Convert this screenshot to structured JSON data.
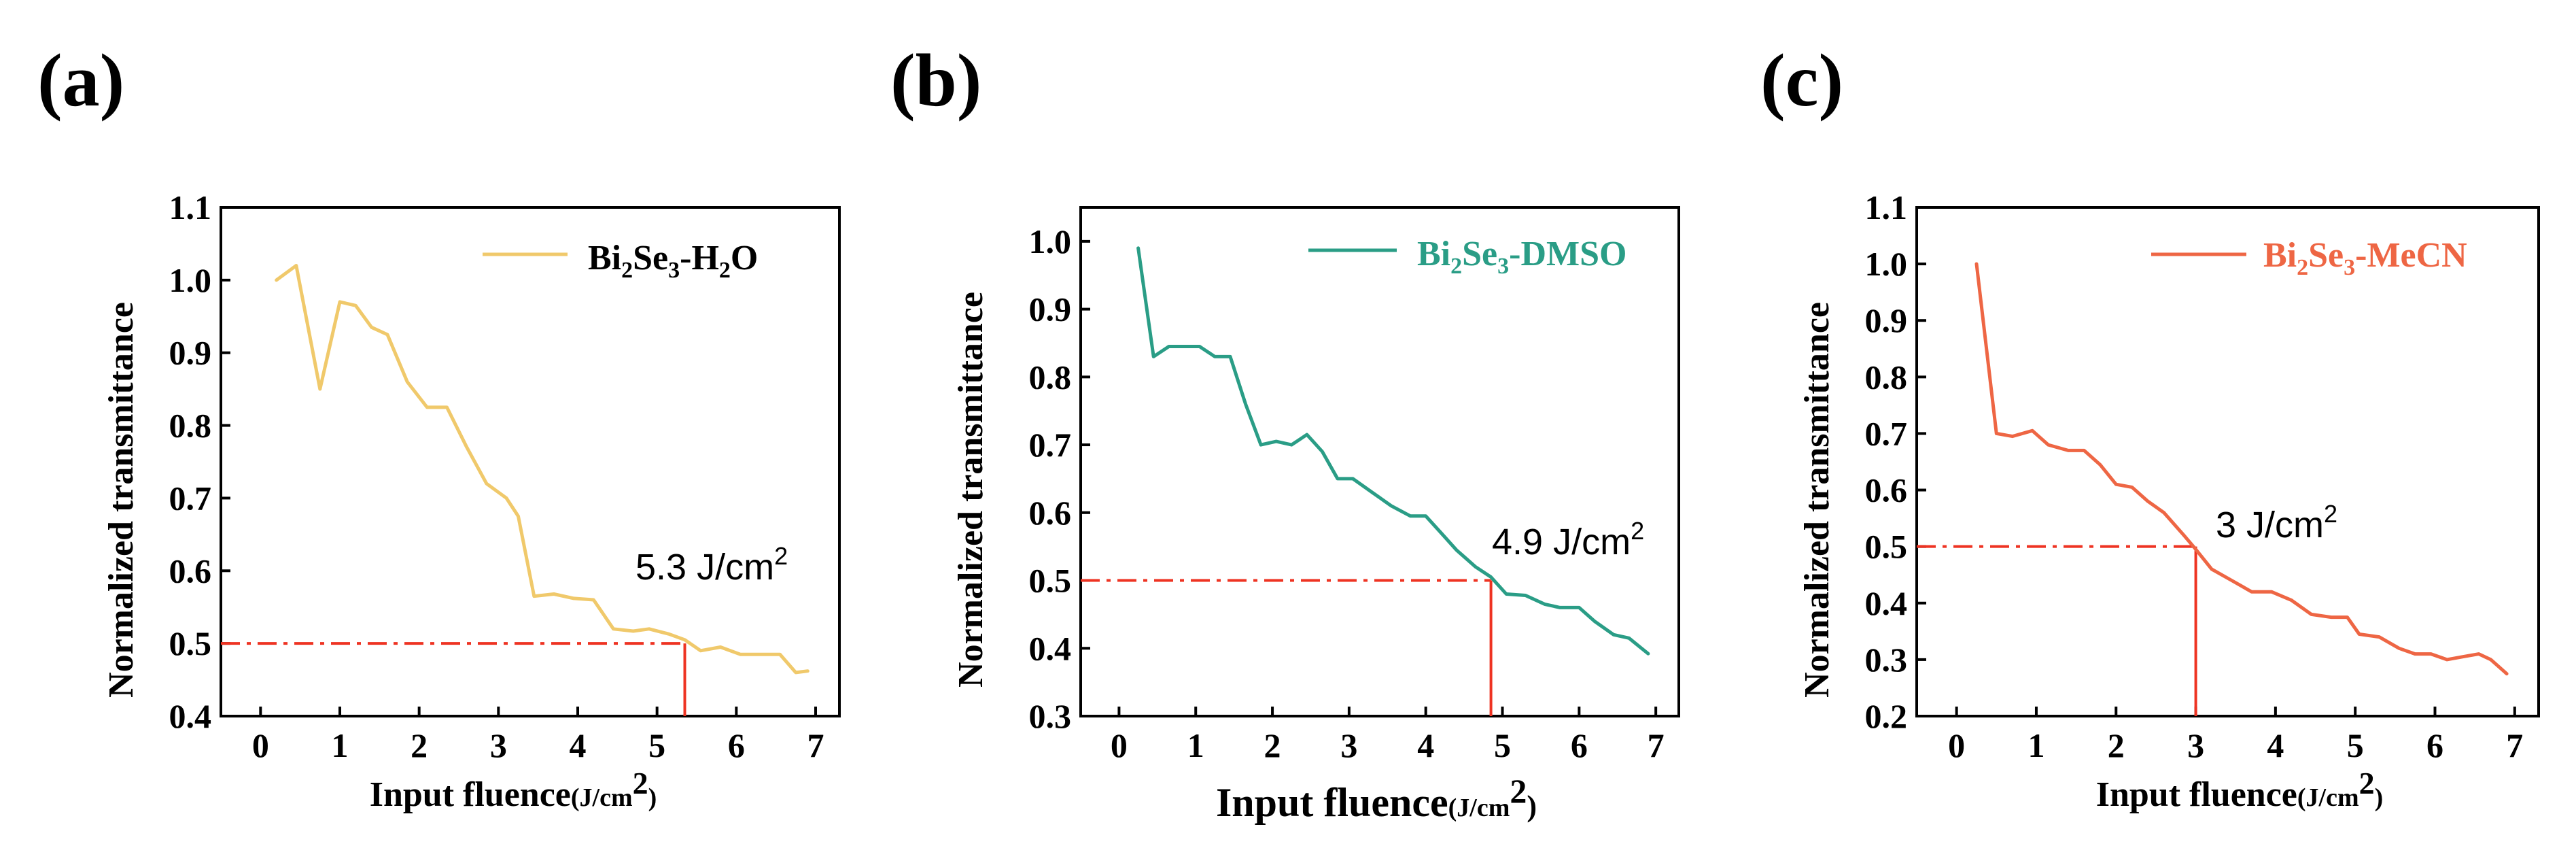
{
  "chart_data": [
    {
      "panel_label": "(a)",
      "type": "line",
      "xlabel": "Input fluence(J/cm2)",
      "ylabel": "Normalized transmittance",
      "xlim": [
        -0.5,
        7.3
      ],
      "ylim": [
        0.4,
        1.1
      ],
      "x_ticks": [
        "0",
        "1",
        "2",
        "3",
        "4",
        "5",
        "6",
        "7"
      ],
      "y_ticks": [
        "0.4",
        "0.5",
        "0.6",
        "0.7",
        "0.8",
        "0.9",
        "1.0",
        "1.1"
      ],
      "legend": {
        "base": "Bi",
        "s1": "2",
        "mid": "Se",
        "s2": "3",
        "suffix": "-H",
        "s3": "2",
        "end": "O"
      },
      "legend_position": "top-right",
      "color": "#f0c96b",
      "ref_color": "#ee3322",
      "series": [
        {
          "name": "Bi2Se3-H2O",
          "x": [
            0.2,
            0.45,
            0.75,
            1.0,
            1.2,
            1.4,
            1.6,
            1.85,
            2.1,
            2.35,
            2.6,
            2.85,
            3.1,
            3.25,
            3.45,
            3.7,
            3.95,
            4.2,
            4.45,
            4.7,
            4.9,
            5.15,
            5.35,
            5.55,
            5.8,
            6.05,
            6.3,
            6.55,
            6.75,
            6.9
          ],
          "y": [
            1.0,
            1.02,
            0.85,
            0.97,
            0.965,
            0.935,
            0.925,
            0.86,
            0.825,
            0.825,
            0.77,
            0.72,
            0.7,
            0.675,
            0.565,
            0.568,
            0.562,
            0.56,
            0.52,
            0.517,
            0.52,
            0.513,
            0.505,
            0.49,
            0.495,
            0.485,
            0.485,
            0.485,
            0.46,
            0.462
          ]
        }
      ],
      "threshold": {
        "x": 5.35,
        "y": 0.5,
        "label": "5.3 J/cm",
        "label_sup": "2"
      }
    },
    {
      "panel_label": "(b)",
      "type": "line",
      "xlabel": "Input fluence(J/cm2)",
      "ylabel": "Normalized transmittance",
      "xlim": [
        -0.5,
        7.3
      ],
      "ylim": [
        0.3,
        1.05
      ],
      "x_ticks": [
        "0",
        "1",
        "2",
        "3",
        "4",
        "5",
        "6",
        "7"
      ],
      "y_ticks": [
        "0.3",
        "0.4",
        "0.5",
        "0.6",
        "0.7",
        "0.8",
        "0.9",
        "1.0"
      ],
      "legend": {
        "base": "Bi",
        "s1": "2",
        "mid": "Se",
        "s2": "3",
        "suffix": "-DMSO",
        "s3": "",
        "end": ""
      },
      "legend_position": "top-right",
      "color": "#2a9d86",
      "ref_color": "#ee3322",
      "series": [
        {
          "name": "Bi2Se3-DMSO",
          "x": [
            0.25,
            0.45,
            0.65,
            0.85,
            1.05,
            1.25,
            1.45,
            1.65,
            1.85,
            2.05,
            2.25,
            2.45,
            2.65,
            2.85,
            3.05,
            3.3,
            3.55,
            3.8,
            4.0,
            4.2,
            4.4,
            4.65,
            4.85,
            5.05,
            5.3,
            5.55,
            5.75,
            6.0,
            6.2,
            6.45,
            6.65,
            6.9
          ],
          "y": [
            0.99,
            0.83,
            0.845,
            0.845,
            0.845,
            0.83,
            0.83,
            0.76,
            0.7,
            0.705,
            0.7,
            0.715,
            0.69,
            0.65,
            0.65,
            0.63,
            0.61,
            0.595,
            0.595,
            0.57,
            0.545,
            0.52,
            0.505,
            0.48,
            0.478,
            0.465,
            0.46,
            0.46,
            0.44,
            0.42,
            0.415,
            0.392
          ]
        }
      ],
      "threshold": {
        "x": 4.85,
        "y": 0.5,
        "label": "4.9 J/cm",
        "label_sup": "2"
      }
    },
    {
      "panel_label": "(c)",
      "type": "line",
      "xlabel": "Input fluence(J/cm2)",
      "ylabel": "Normalized transmittance",
      "xlim": [
        -0.5,
        7.3
      ],
      "ylim": [
        0.2,
        1.1
      ],
      "x_ticks": [
        "0",
        "1",
        "2",
        "3",
        "4",
        "5",
        "6",
        "7"
      ],
      "y_ticks": [
        "0.2",
        "0.3",
        "0.4",
        "0.5",
        "0.6",
        "0.7",
        "0.8",
        "0.9",
        "1.0",
        "1.1"
      ],
      "legend": {
        "base": "Bi",
        "s1": "2",
        "mid": "Se",
        "s2": "3",
        "suffix": "-MeCN",
        "s3": "",
        "end": ""
      },
      "legend_position": "top-right",
      "color": "#ee6644",
      "ref_color": "#ee3322",
      "series": [
        {
          "name": "Bi2Se3-MeCN",
          "x": [
            0.25,
            0.5,
            0.7,
            0.95,
            1.15,
            1.4,
            1.6,
            1.8,
            2.0,
            2.2,
            2.4,
            2.6,
            2.85,
            3.0,
            3.2,
            3.45,
            3.7,
            3.95,
            4.2,
            4.45,
            4.7,
            4.9,
            5.05,
            5.3,
            5.55,
            5.75,
            5.95,
            6.15,
            6.35,
            6.55,
            6.7,
            6.9
          ],
          "y": [
            1.0,
            0.7,
            0.695,
            0.705,
            0.68,
            0.67,
            0.67,
            0.645,
            0.61,
            0.605,
            0.58,
            0.56,
            0.52,
            0.495,
            0.46,
            0.44,
            0.42,
            0.42,
            0.405,
            0.38,
            0.375,
            0.375,
            0.345,
            0.34,
            0.32,
            0.31,
            0.31,
            0.3,
            0.305,
            0.31,
            0.3,
            0.275
          ]
        }
      ],
      "threshold": {
        "x": 3.0,
        "y": 0.5,
        "label": "3 J/cm",
        "label_sup": "2"
      }
    }
  ]
}
